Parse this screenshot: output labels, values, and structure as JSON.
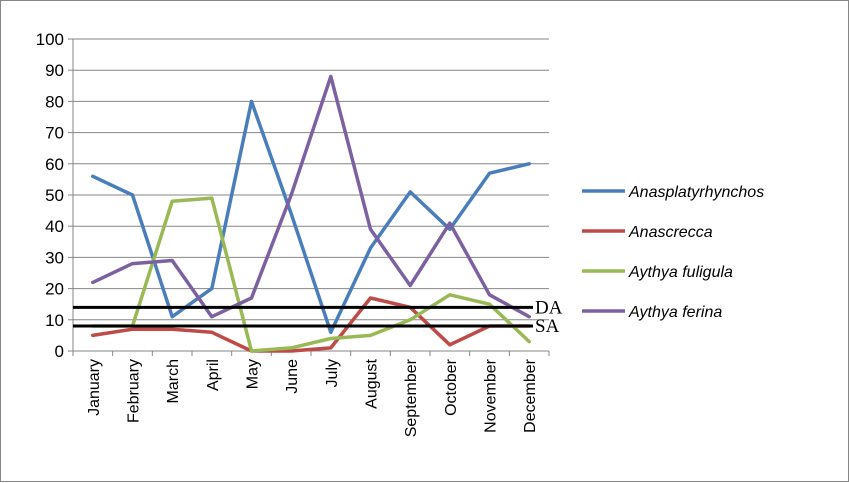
{
  "colors": {
    "Anasplatyrhynchos": "#4a7ebb",
    "Anascrecca": "#be4b48",
    "Aythya fuligula": "#98b954",
    "Aythya ferina": "#7d60a0",
    "reference_lines": "#000000",
    "grid": "#868686"
  },
  "chart_data": {
    "type": "line",
    "title": "",
    "xlabel": "",
    "ylabel": "",
    "categories": [
      "January",
      "February",
      "March",
      "April",
      "May",
      "June",
      "July",
      "August",
      "September",
      "October",
      "November",
      "December"
    ],
    "ylim": [
      0,
      100
    ],
    "yticks": [
      0,
      10,
      20,
      30,
      40,
      50,
      60,
      70,
      80,
      90,
      100
    ],
    "grid": true,
    "legend_position": "right",
    "series": [
      {
        "name": "Anasplatyrhynchos",
        "values": [
          56,
          50,
          11,
          20,
          80,
          44,
          6,
          33,
          51,
          39,
          57,
          60
        ]
      },
      {
        "name": "Anascrecca",
        "values": [
          5,
          7,
          7,
          6,
          0,
          0,
          1,
          17,
          14,
          2,
          8,
          8
        ]
      },
      {
        "name": "Aythya fuligula",
        "values": [
          8,
          8,
          48,
          49,
          0,
          1,
          4,
          5,
          10,
          18,
          15,
          3
        ]
      },
      {
        "name": "Aythya ferina",
        "values": [
          22,
          28,
          29,
          11,
          17,
          50,
          88,
          39,
          21,
          41,
          18,
          11
        ]
      }
    ],
    "reference_lines": [
      {
        "label": "DA",
        "value": 14
      },
      {
        "label": "SA",
        "value": 8
      }
    ]
  }
}
